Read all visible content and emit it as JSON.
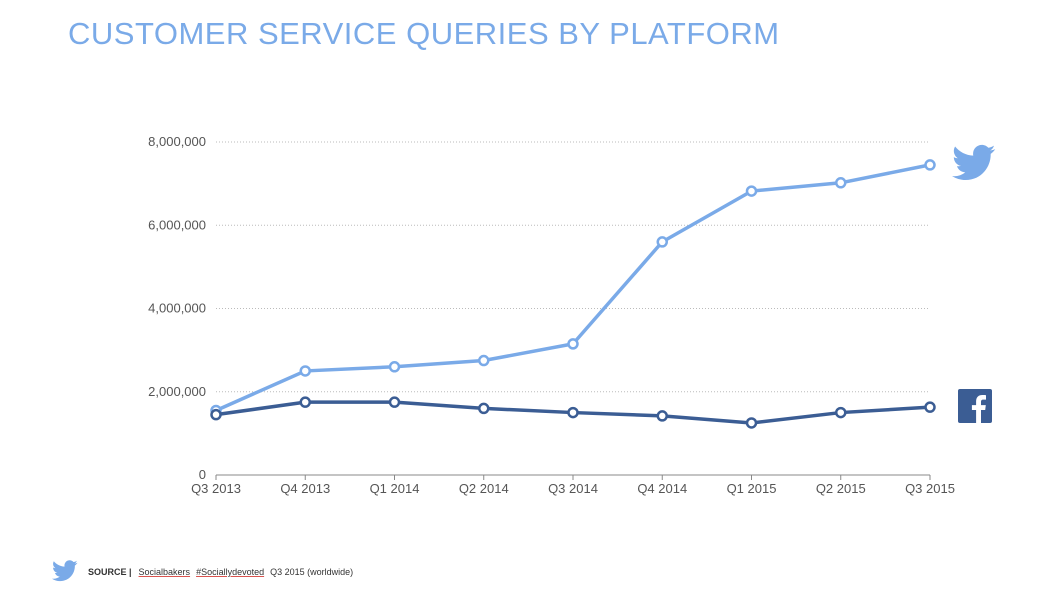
{
  "title": "CUSTOMER SERVICE QUERIES BY PLATFORM",
  "source": {
    "label": "SOURCE |",
    "link1": "Socialbakers",
    "link2": "#Sociallydevoted",
    "suffix": "Q3 2015 (worldwide)"
  },
  "icons": {
    "twitter": "twitter-bird-icon",
    "facebook": "facebook-icon"
  },
  "colors": {
    "twitter": "#7aaae8",
    "facebook": "#3b5d94",
    "title": "#7aaae8"
  },
  "chart_data": {
    "type": "line",
    "title": "CUSTOMER SERVICE QUERIES BY PLATFORM",
    "categories": [
      "Q3 2013",
      "Q4 2013",
      "Q1 2014",
      "Q2 2014",
      "Q3 2014",
      "Q4 2014",
      "Q1 2015",
      "Q2 2015",
      "Q3 2015"
    ],
    "yticks": [
      "0",
      "2,000,000",
      "4,000,000",
      "6,000,000",
      "8,000,000"
    ],
    "ylim": [
      0,
      8000000
    ],
    "grid": true,
    "series": [
      {
        "key": "twitter",
        "values": [
          1550000,
          2500000,
          2600000,
          2750000,
          3150000,
          5600000,
          6820000,
          7020000,
          7450000
        ]
      },
      {
        "key": "facebook",
        "values": [
          1450000,
          1750000,
          1750000,
          1600000,
          1500000,
          1420000,
          1250000,
          1500000,
          1630000
        ]
      }
    ]
  }
}
